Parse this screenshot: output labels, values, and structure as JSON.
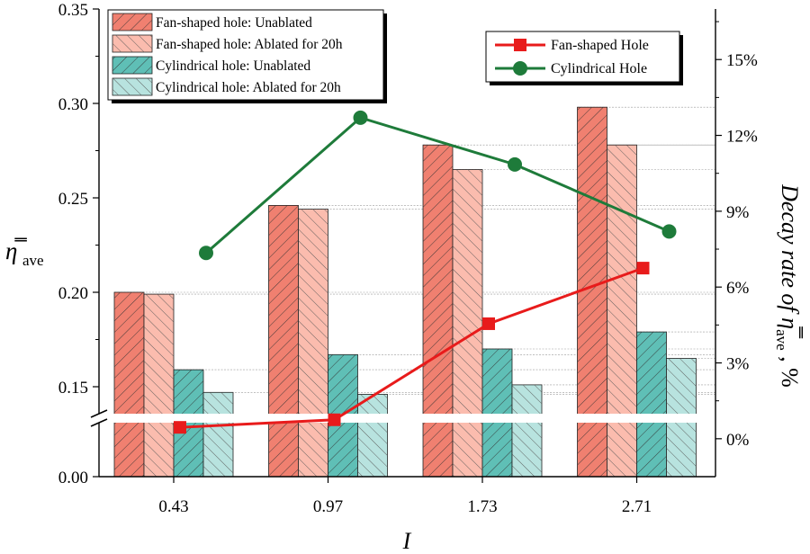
{
  "chart_data": {
    "type": "bar",
    "categories": [
      "0.43",
      "0.97",
      "1.73",
      "2.71"
    ],
    "xlabel": "I",
    "ylabel": "η̿",
    "ylabel_sub": "ave",
    "y2label_prefix": "Decay rate of ",
    "y2label_symbol": "η̿",
    "y2label_sub": "ave",
    "y2label_suffix": " , %",
    "y_upper_range": [
      0.13,
      0.35
    ],
    "y_upper_ticks": [
      "0.15",
      "0.20",
      "0.25",
      "0.30",
      "0.35"
    ],
    "y_lower_ticks": [
      "0.00"
    ],
    "y_axis_break": [
      0.0,
      0.13
    ],
    "y2_range": [
      -0.015,
      0.17
    ],
    "y2_ticks": [
      "0%",
      "3%",
      "6%",
      "9%",
      "12%",
      "15%"
    ],
    "bar_series": [
      {
        "name": "Fan-shaped hole: Unablated",
        "values": [
          0.2,
          0.246,
          0.278,
          0.298
        ],
        "color": "#f08070",
        "hatch": "forward"
      },
      {
        "name": "Fan-shaped hole: Ablated for 20h",
        "values": [
          0.199,
          0.244,
          0.265,
          0.278
        ],
        "color": "#fbbcae",
        "hatch": "backward"
      },
      {
        "name": "Cylindrical hole: Unablated",
        "values": [
          0.159,
          0.167,
          0.17,
          0.179
        ],
        "color": "#5fbfb6",
        "hatch": "forward"
      },
      {
        "name": "Cylindrical hole: Ablated for 20h",
        "values": [
          0.147,
          0.146,
          0.151,
          0.165
        ],
        "color": "#b8e3df",
        "hatch": "backward"
      }
    ],
    "line_series": [
      {
        "name": "Fan-shaped Hole",
        "values": [
          0.0045,
          0.0075,
          0.0455,
          0.0675
        ],
        "color": "#e81b1b",
        "marker": "square"
      },
      {
        "name": "Cylindrical Hole",
        "values": [
          0.0735,
          0.127,
          0.1085,
          0.082
        ],
        "color": "#1e7b3a",
        "marker": "circle"
      }
    ],
    "legend_bars_position": "top-left",
    "legend_lines_position": "top-right",
    "grid": "dashed reference lines"
  }
}
